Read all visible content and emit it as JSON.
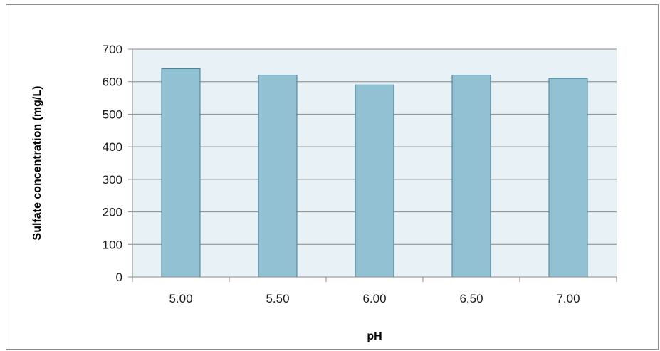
{
  "chart_data": {
    "type": "bar",
    "categories": [
      "5.00",
      "5.50",
      "6.00",
      "6.50",
      "7.00"
    ],
    "values": [
      640,
      620,
      590,
      620,
      610
    ],
    "title": "",
    "xlabel": "pH",
    "ylabel": "Sulfate concentration (mg/L)",
    "ylim": [
      0,
      700
    ],
    "yticks": [
      "0",
      "100",
      "200",
      "300",
      "400",
      "500",
      "600",
      "700"
    ],
    "grid": true,
    "legend": "none",
    "colors": {
      "bar_fill": "#92c1d3",
      "bar_stroke": "#3f7f98",
      "plot_background": "#e8f1f5",
      "gridline": "#8a8a8a",
      "axis": "#8a8a8a"
    }
  }
}
